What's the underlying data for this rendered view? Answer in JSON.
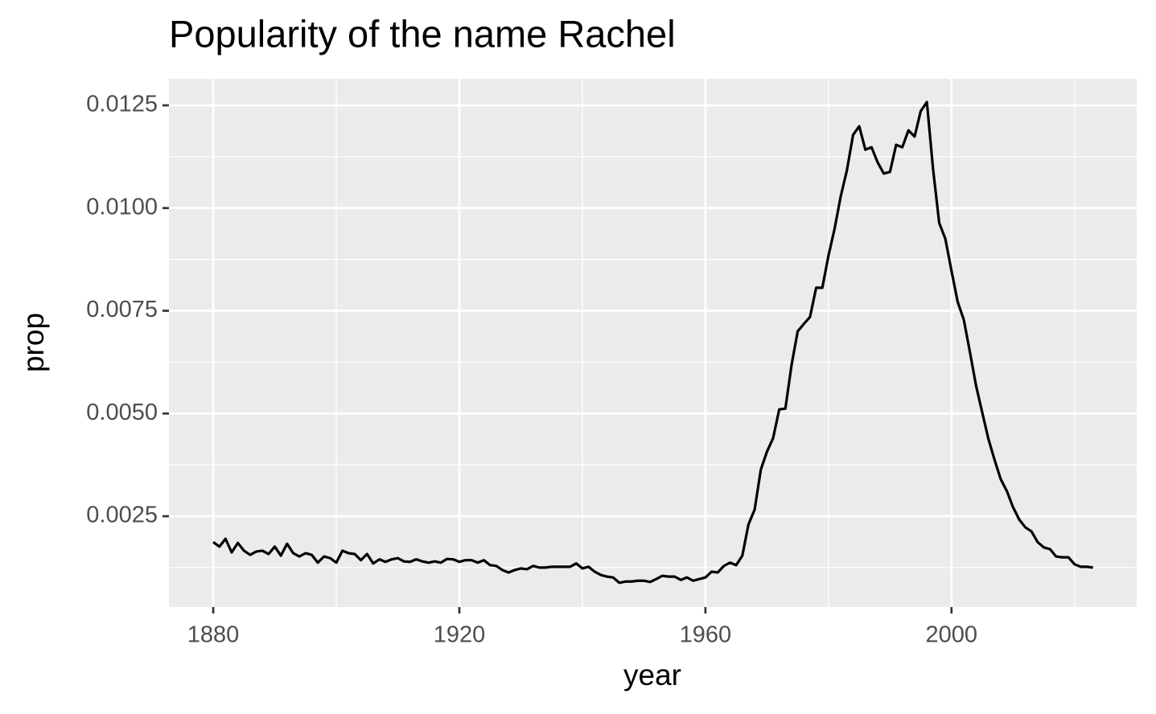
{
  "chart_data": {
    "type": "line",
    "title": "Popularity of the name Rachel",
    "x_label": "year",
    "y_label": "prop",
    "x": [
      1880,
      1881,
      1882,
      1883,
      1884,
      1885,
      1886,
      1887,
      1888,
      1889,
      1890,
      1891,
      1892,
      1893,
      1894,
      1895,
      1896,
      1897,
      1898,
      1899,
      1900,
      1901,
      1902,
      1903,
      1904,
      1905,
      1906,
      1907,
      1908,
      1909,
      1910,
      1911,
      1912,
      1913,
      1914,
      1915,
      1916,
      1917,
      1918,
      1919,
      1920,
      1921,
      1922,
      1923,
      1924,
      1925,
      1926,
      1927,
      1928,
      1929,
      1930,
      1931,
      1932,
      1933,
      1934,
      1935,
      1936,
      1937,
      1938,
      1939,
      1940,
      1941,
      1942,
      1943,
      1944,
      1945,
      1946,
      1947,
      1948,
      1949,
      1950,
      1951,
      1952,
      1953,
      1954,
      1955,
      1956,
      1957,
      1958,
      1959,
      1960,
      1961,
      1962,
      1963,
      1964,
      1965,
      1966,
      1967,
      1968,
      1969,
      1970,
      1971,
      1972,
      1973,
      1974,
      1975,
      1976,
      1977,
      1978,
      1979,
      1980,
      1981,
      1982,
      1983,
      1984,
      1985,
      1986,
      1987,
      1988,
      1989,
      1990,
      1991,
      1992,
      1993,
      1994,
      1995,
      1996,
      1997,
      1998,
      1999,
      2000,
      2001,
      2002,
      2003,
      2004,
      2005,
      2006,
      2007,
      2008,
      2009,
      2010,
      2011,
      2012,
      2013,
      2014,
      2015,
      2016,
      2017,
      2018,
      2019,
      2020,
      2021,
      2022,
      2023
    ],
    "values": [
      0.00187,
      0.00176,
      0.00195,
      0.00162,
      0.00185,
      0.00166,
      0.00156,
      0.00164,
      0.00166,
      0.00158,
      0.00176,
      0.00154,
      0.00183,
      0.0016,
      0.00152,
      0.0016,
      0.00156,
      0.00137,
      0.00152,
      0.00148,
      0.00137,
      0.00166,
      0.0016,
      0.00158,
      0.00143,
      0.00158,
      0.00135,
      0.00145,
      0.00139,
      0.00145,
      0.00148,
      0.0014,
      0.00139,
      0.00145,
      0.0014,
      0.00137,
      0.0014,
      0.00137,
      0.00146,
      0.00145,
      0.00139,
      0.00143,
      0.00143,
      0.00137,
      0.00143,
      0.00131,
      0.00129,
      0.00119,
      0.00113,
      0.00119,
      0.00123,
      0.00121,
      0.00129,
      0.00125,
      0.00125,
      0.00127,
      0.00127,
      0.00127,
      0.00127,
      0.00135,
      0.00123,
      0.00127,
      0.00115,
      0.00107,
      0.00103,
      0.00101,
      0.00088,
      0.00091,
      0.00091,
      0.00093,
      0.00093,
      0.0009,
      0.00097,
      0.00105,
      0.00103,
      0.00103,
      0.00095,
      0.00101,
      0.00093,
      0.00097,
      0.00101,
      0.00115,
      0.00113,
      0.00129,
      0.00137,
      0.00131,
      0.00154,
      0.0023,
      0.00266,
      0.00363,
      0.00407,
      0.0044,
      0.0051,
      0.00512,
      0.00618,
      0.007,
      0.00718,
      0.00735,
      0.00806,
      0.00806,
      0.00884,
      0.0095,
      0.01029,
      0.01092,
      0.01178,
      0.01199,
      0.01142,
      0.01148,
      0.01111,
      0.01084,
      0.01088,
      0.01154,
      0.01148,
      0.01189,
      0.01174,
      0.01236,
      0.01258,
      0.01095,
      0.00964,
      0.00925,
      0.00847,
      0.00772,
      0.00728,
      0.00649,
      0.00567,
      0.00502,
      0.00438,
      0.00387,
      0.0034,
      0.00311,
      0.00272,
      0.00242,
      0.00223,
      0.00213,
      0.00187,
      0.00174,
      0.0017,
      0.00152,
      0.0015,
      0.0015,
      0.00133,
      0.00127,
      0.00127,
      0.00125
    ],
    "color": "#000000",
    "xlim": [
      1872.8,
      2030.1
    ],
    "xticks": [
      1880,
      1920,
      1960,
      2000
    ],
    "ylim": [
      0.000289,
      0.013146
    ],
    "yticks": [
      0.0025,
      {
        "value": 0.005,
        "label": "0.0050"
      },
      {
        "value": 0.0075,
        "label": "0.0075"
      },
      {
        "value": 0.01,
        "label": "0.0100"
      },
      0.0125
    ],
    "grid": true
  }
}
